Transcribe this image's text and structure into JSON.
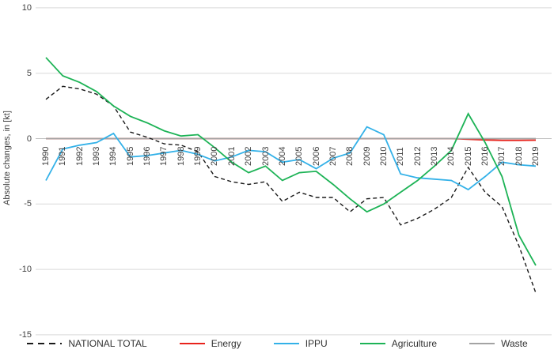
{
  "chart_data": {
    "type": "line",
    "title": "",
    "xlabel": "",
    "ylabel": "Absolute changes, in [kt]",
    "ylim": [
      -15,
      10
    ],
    "yticks": [
      10,
      5,
      0,
      -5,
      -10,
      -15
    ],
    "grid": true,
    "legend_position": "bottom",
    "x": [
      1990,
      1991,
      1992,
      1993,
      1994,
      1995,
      1996,
      1997,
      1998,
      1999,
      2000,
      2001,
      2002,
      2003,
      2004,
      2005,
      2006,
      2007,
      2008,
      2009,
      2010,
      2011,
      2012,
      2013,
      2014,
      2015,
      2016,
      2017,
      2018,
      2019
    ],
    "series": [
      {
        "name": "NATIONAL TOTAL",
        "color": "#1a1a1a",
        "style": "dashed",
        "values": [
          3.0,
          4.0,
          3.8,
          3.4,
          2.5,
          0.5,
          0.1,
          -0.4,
          -0.5,
          -1.0,
          -2.9,
          -3.3,
          -3.5,
          -3.3,
          -4.8,
          -4.1,
          -4.5,
          -4.5,
          -5.6,
          -4.6,
          -4.5,
          -6.6,
          -6.1,
          -5.4,
          -4.5,
          -2.2,
          -4.1,
          -5.2,
          -8.2,
          -11.8
        ]
      },
      {
        "name": "Energy",
        "color": "#e8231c",
        "style": "solid",
        "values": [
          0,
          0,
          0,
          0,
          0,
          0,
          0,
          0,
          0,
          0,
          0,
          0,
          0,
          0,
          0,
          0,
          0,
          0,
          0,
          0,
          0,
          0,
          0,
          0,
          0,
          -0.05,
          -0.1,
          -0.13,
          -0.13,
          -0.12
        ]
      },
      {
        "name": "IPPU",
        "color": "#33b1e8",
        "style": "solid",
        "values": [
          -3.2,
          -0.8,
          -0.5,
          -0.3,
          0.4,
          -1.4,
          -1.3,
          -1.1,
          -0.9,
          -1.2,
          -1.7,
          -1.4,
          -0.9,
          -1.0,
          -1.8,
          -1.6,
          -2.3,
          -1.5,
          -1.1,
          0.9,
          0.3,
          -2.7,
          -3.0,
          -3.1,
          -3.2,
          -3.9,
          -2.9,
          -1.8,
          -2.0,
          -2.1
        ]
      },
      {
        "name": "Agriculture",
        "color": "#1db356",
        "style": "solid",
        "values": [
          6.2,
          4.8,
          4.3,
          3.6,
          2.5,
          1.7,
          1.2,
          0.6,
          0.2,
          0.3,
          -0.7,
          -1.8,
          -2.6,
          -2.1,
          -3.2,
          -2.6,
          -2.5,
          -3.5,
          -4.6,
          -5.6,
          -5.0,
          -4.1,
          -3.2,
          -2.1,
          -0.9,
          1.9,
          -0.3,
          -2.9,
          -7.4,
          -9.7
        ]
      },
      {
        "name": "Waste",
        "color": "#a3a3a3",
        "style": "solid",
        "values": [
          0,
          0,
          0,
          0,
          0,
          0,
          0,
          0,
          0,
          0,
          0,
          0,
          0,
          0,
          0,
          0,
          0,
          0,
          0,
          0,
          0,
          0,
          0,
          0,
          0,
          0,
          0,
          0,
          0,
          0
        ]
      }
    ],
    "colors": {
      "gridline": "#d9d9d9",
      "zero_line": "#bfbfbf",
      "axis_text": "#404040"
    }
  }
}
